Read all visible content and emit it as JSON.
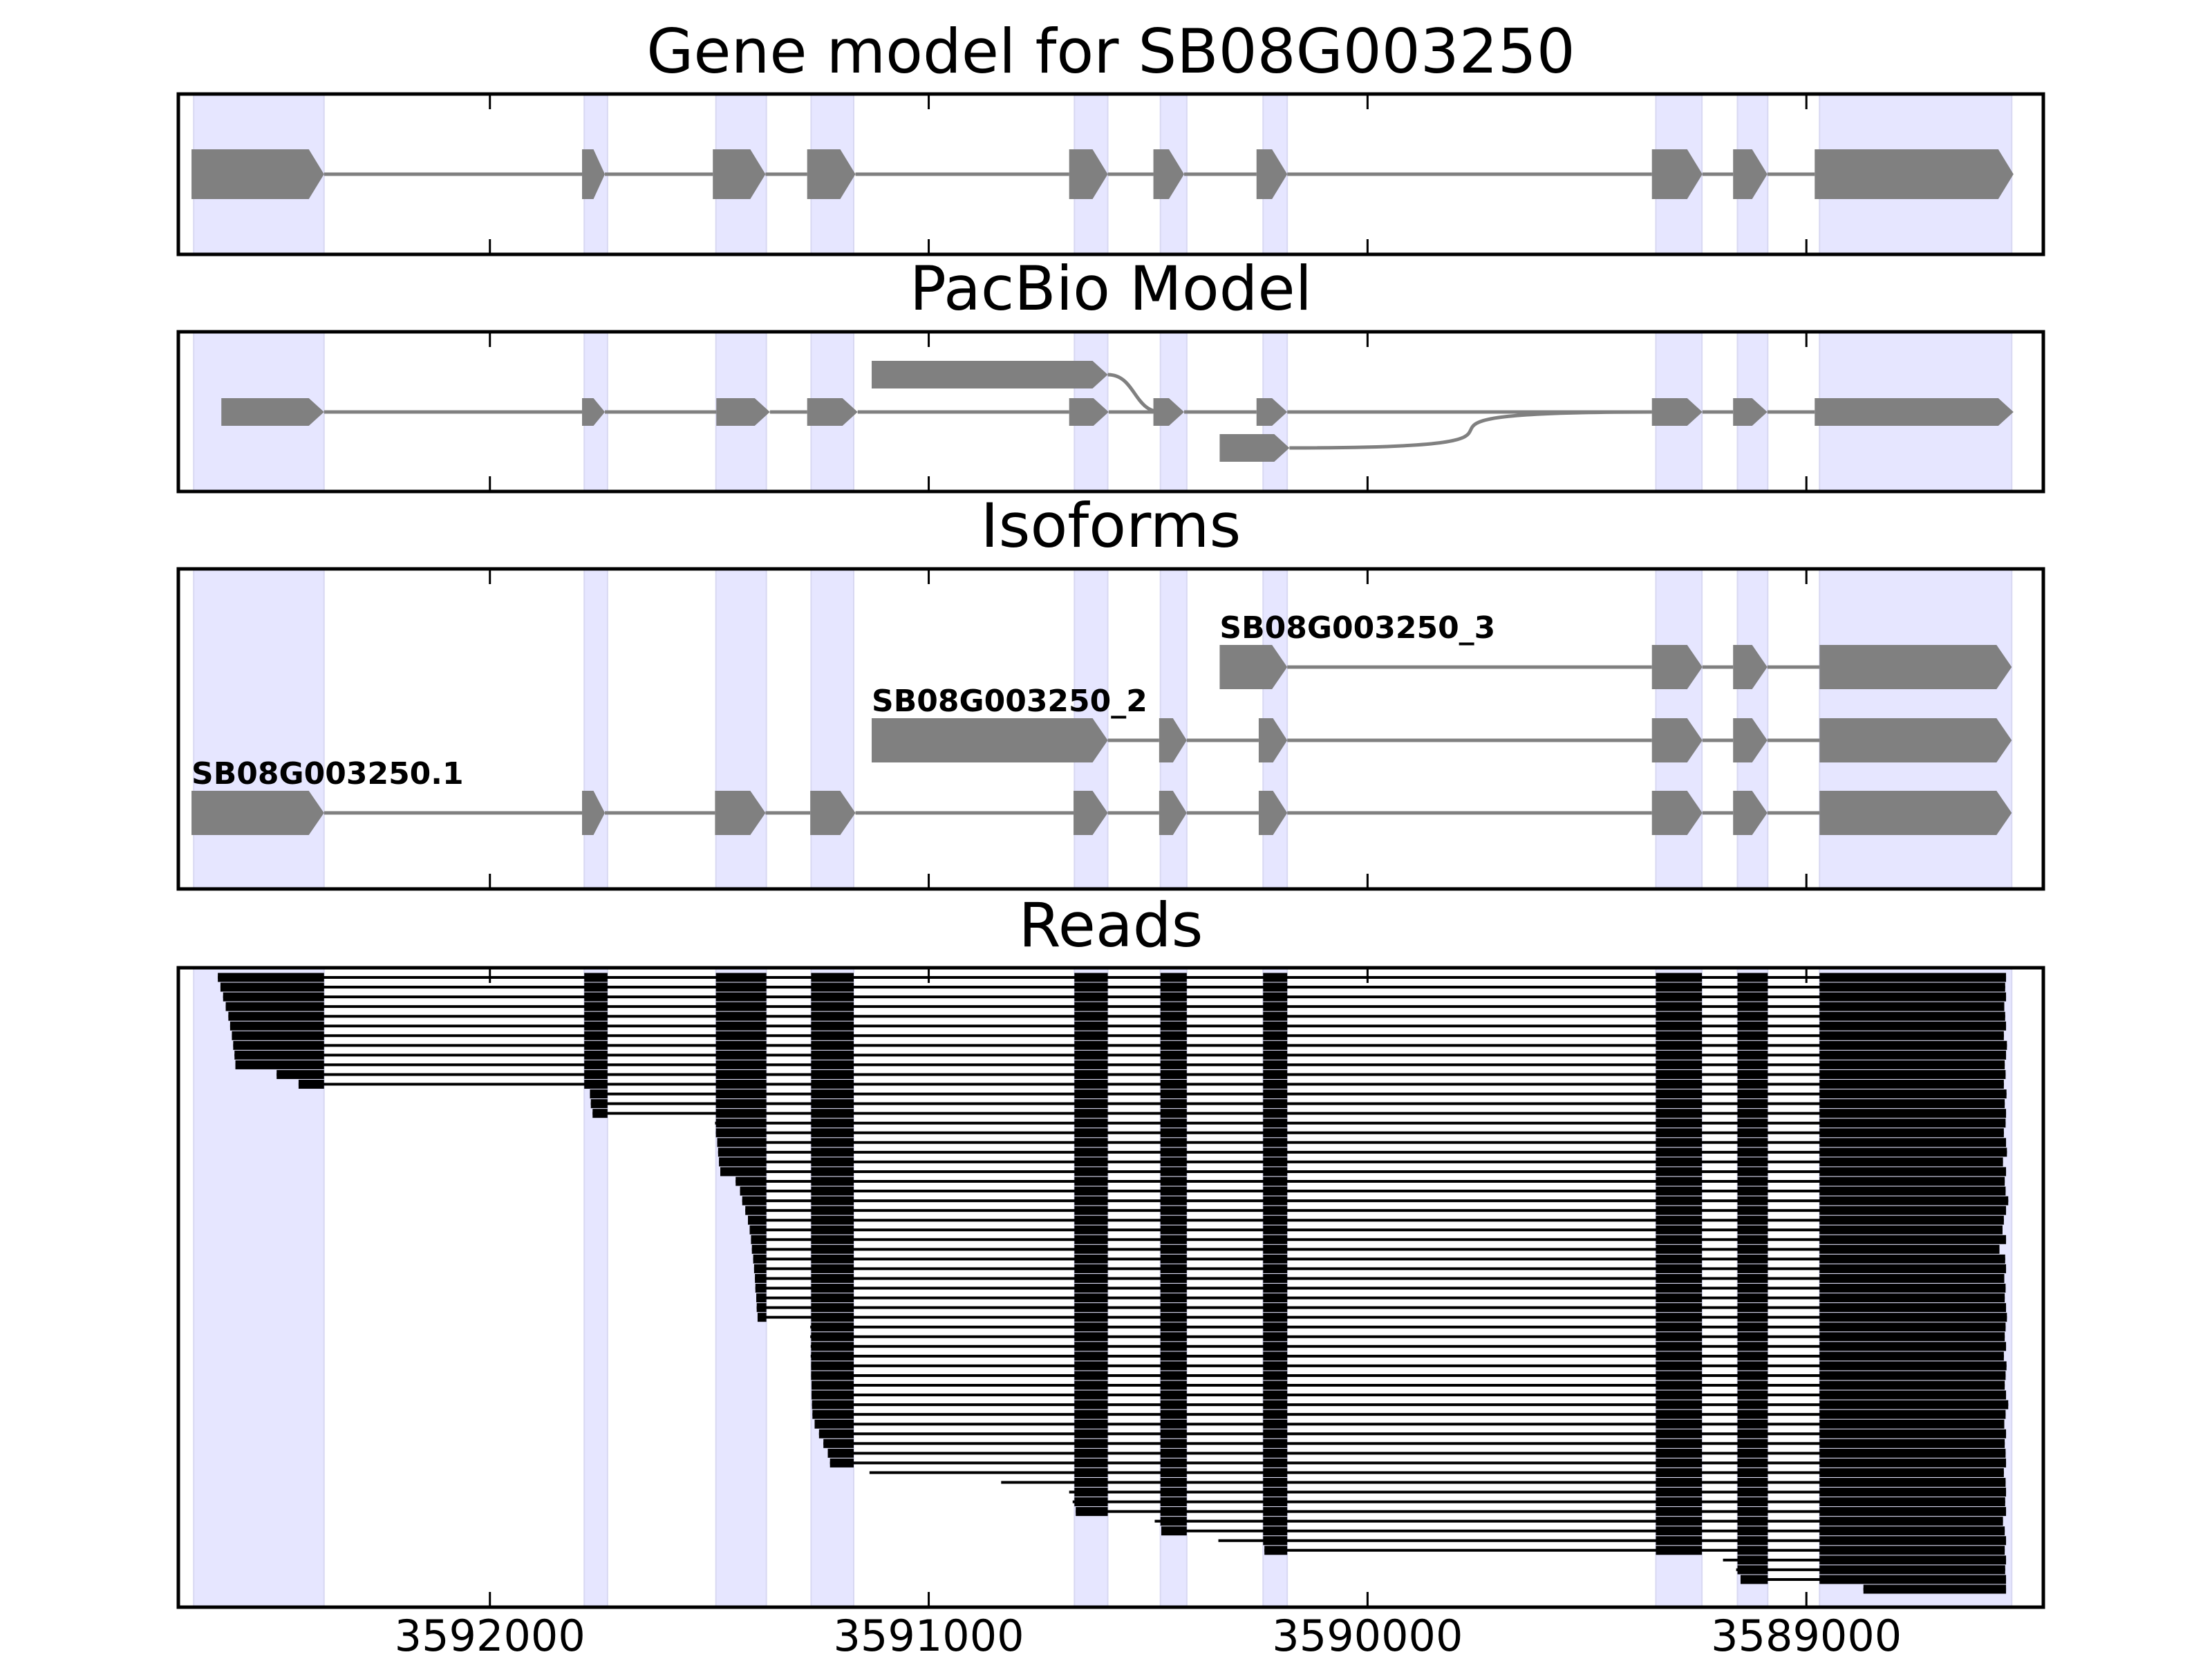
{
  "chart_data": {
    "type": "genomic_track_plot",
    "strand": "minus",
    "xlim": [
      3592710,
      3588460
    ],
    "x_axis": {
      "ticks": [
        3592000,
        3591000,
        3590000,
        3589000
      ],
      "tick_labels": [
        "3592000",
        "3591000",
        "3590000",
        "3589000"
      ]
    },
    "colors": {
      "exon_shading": "#e6e6ff",
      "feature": "#808080",
      "read": "#000000",
      "frame": "#000000"
    },
    "exon_regions": [
      [
        3592675,
        3592378
      ],
      [
        3591785,
        3591732
      ],
      [
        3591485,
        3591370
      ],
      [
        3591268,
        3591171
      ],
      [
        3590668,
        3590592
      ],
      [
        3590472,
        3590412
      ],
      [
        3590238,
        3590183
      ],
      [
        3589343,
        3589238
      ],
      [
        3589157,
        3589088
      ],
      [
        3588970,
        3588532
      ]
    ],
    "panels": [
      {
        "title": "Gene model for SB08G003250",
        "tracks": [
          {
            "lane": 0,
            "exons": [
              [
                3592680,
                3592378
              ],
              [
                3591790,
                3591738
              ],
              [
                3591492,
                3591372
              ],
              [
                3591277,
                3591167
              ],
              [
                3590680,
                3590592
              ],
              [
                3590488,
                3590418
              ],
              [
                3590253,
                3590183
              ],
              [
                3589352,
                3589237
              ],
              [
                3589167,
                3589089
              ],
              [
                3588981,
                3588528
              ]
            ]
          }
        ]
      },
      {
        "title": "PacBio Model",
        "tracks": [
          {
            "lane": 0,
            "exons": [
              [
                3592612,
                3592378
              ],
              [
                3591790,
                3591738
              ],
              [
                3591484,
                3591362
              ],
              [
                3591277,
                3591162
              ],
              [
                3590680,
                3590590
              ],
              [
                3590488,
                3590418
              ],
              [
                3590253,
                3590183
              ],
              [
                3589352,
                3589237
              ],
              [
                3589167,
                3589089
              ],
              [
                3588981,
                3588528
              ]
            ]
          },
          {
            "lane": 1,
            "exons": [
              [
                3591130,
                3590592
              ]
            ],
            "join_to": 3590470
          },
          {
            "lane": -1,
            "exons": [
              [
                3590337,
                3590178
              ]
            ],
            "join_to": 3589352
          }
        ]
      },
      {
        "title": "Isoforms",
        "tracks": [
          {
            "label": "SB08G003250.1",
            "lane": 0,
            "exons": [
              [
                3592680,
                3592378
              ],
              [
                3591790,
                3591738
              ],
              [
                3591487,
                3591372
              ],
              [
                3591270,
                3591167
              ],
              [
                3590670,
                3590592
              ],
              [
                3590475,
                3590412
              ],
              [
                3590248,
                3590183
              ],
              [
                3589352,
                3589237
              ],
              [
                3589167,
                3589089
              ],
              [
                3588970,
                3588532
              ]
            ]
          },
          {
            "label": "SB08G003250_2",
            "lane": 1,
            "exons": [
              [
                3591130,
                3590592
              ],
              [
                3590475,
                3590412
              ],
              [
                3590248,
                3590183
              ],
              [
                3589352,
                3589237
              ],
              [
                3589167,
                3589089
              ],
              [
                3588970,
                3588532
              ]
            ]
          },
          {
            "label": "SB08G003250_3",
            "lane": 2,
            "exons": [
              [
                3590337,
                3590183
              ],
              [
                3589352,
                3589237
              ],
              [
                3589167,
                3589089
              ],
              [
                3588970,
                3588532
              ]
            ]
          }
        ]
      },
      {
        "title": "Reads",
        "reads": [
          {
            "start": 3592620,
            "end": 3588545
          },
          {
            "start": 3592614,
            "end": 3588547
          },
          {
            "start": 3592608,
            "end": 3588545
          },
          {
            "start": 3592602,
            "end": 3588549
          },
          {
            "start": 3592596,
            "end": 3588547
          },
          {
            "start": 3592592,
            "end": 3588545
          },
          {
            "start": 3592588,
            "end": 3588550
          },
          {
            "start": 3592585,
            "end": 3588543
          },
          {
            "start": 3592582,
            "end": 3588545
          },
          {
            "start": 3592580,
            "end": 3588548
          },
          {
            "start": 3592486,
            "end": 3588546
          },
          {
            "start": 3592436,
            "end": 3588550
          },
          {
            "start": 3591772,
            "end": 3588544
          },
          {
            "start": 3591770,
            "end": 3588548
          },
          {
            "start": 3591766,
            "end": 3588545
          },
          {
            "start": 3591487,
            "end": 3588546
          },
          {
            "start": 3591485,
            "end": 3588550
          },
          {
            "start": 3591482,
            "end": 3588545
          },
          {
            "start": 3591480,
            "end": 3588543
          },
          {
            "start": 3591478,
            "end": 3588552
          },
          {
            "start": 3591475,
            "end": 3588545
          },
          {
            "start": 3591440,
            "end": 3588548
          },
          {
            "start": 3591430,
            "end": 3588546
          },
          {
            "start": 3591425,
            "end": 3588540
          },
          {
            "start": 3591418,
            "end": 3588545
          },
          {
            "start": 3591412,
            "end": 3588550
          },
          {
            "start": 3591408,
            "end": 3588553
          },
          {
            "start": 3591405,
            "end": 3588545
          },
          {
            "start": 3591403,
            "end": 3588560
          },
          {
            "start": 3591400,
            "end": 3588547
          },
          {
            "start": 3591398,
            "end": 3588545
          },
          {
            "start": 3591396,
            "end": 3588549
          },
          {
            "start": 3591395,
            "end": 3588546
          },
          {
            "start": 3591393,
            "end": 3588548
          },
          {
            "start": 3591392,
            "end": 3588545
          },
          {
            "start": 3591390,
            "end": 3588543
          },
          {
            "start": 3591270,
            "end": 3588546
          },
          {
            "start": 3591270,
            "end": 3588548
          },
          {
            "start": 3591269,
            "end": 3588545
          },
          {
            "start": 3591269,
            "end": 3588550
          },
          {
            "start": 3591268,
            "end": 3588544
          },
          {
            "start": 3591268,
            "end": 3588546
          },
          {
            "start": 3591267,
            "end": 3588548
          },
          {
            "start": 3591267,
            "end": 3588545
          },
          {
            "start": 3591266,
            "end": 3588540
          },
          {
            "start": 3591265,
            "end": 3588546
          },
          {
            "start": 3591260,
            "end": 3588549
          },
          {
            "start": 3591250,
            "end": 3588545
          },
          {
            "start": 3591240,
            "end": 3588548
          },
          {
            "start": 3591230,
            "end": 3588546
          },
          {
            "start": 3591225,
            "end": 3588545
          },
          {
            "start": 3591135,
            "end": 3588550
          },
          {
            "start": 3590835,
            "end": 3588546
          },
          {
            "start": 3590680,
            "end": 3588545
          },
          {
            "start": 3590672,
            "end": 3588547
          },
          {
            "start": 3590665,
            "end": 3588545
          },
          {
            "start": 3590485,
            "end": 3588552
          },
          {
            "start": 3590470,
            "end": 3588548
          },
          {
            "start": 3590340,
            "end": 3588545
          },
          {
            "start": 3590235,
            "end": 3588548
          },
          {
            "start": 3589190,
            "end": 3588545
          },
          {
            "start": 3589160,
            "end": 3588547
          },
          {
            "start": 3589150,
            "end": 3588545
          },
          {
            "start": 3588870,
            "end": 3588545
          }
        ]
      }
    ]
  }
}
